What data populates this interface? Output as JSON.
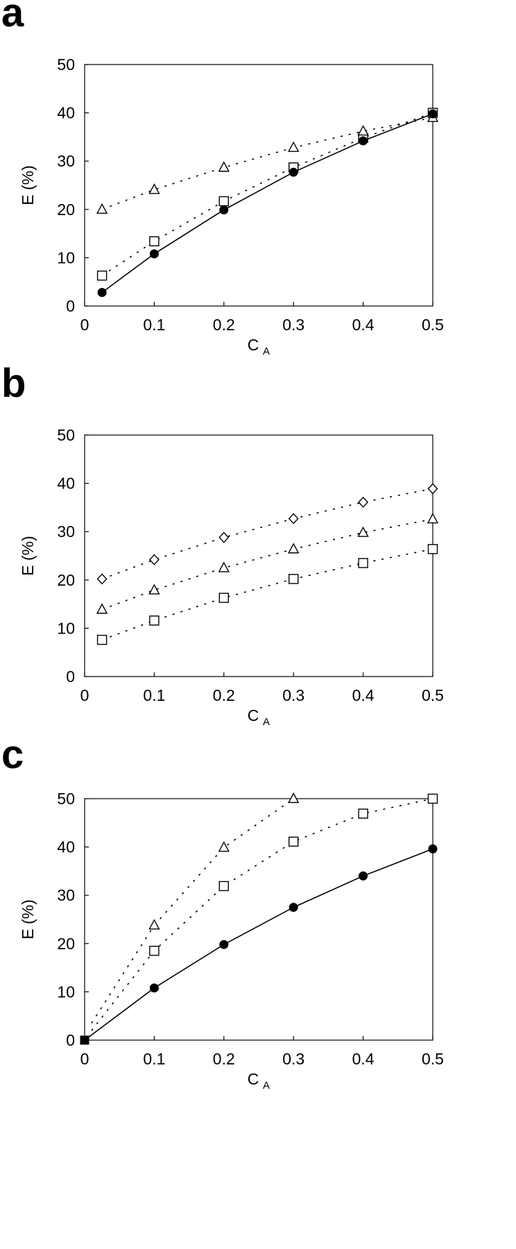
{
  "chart_data": [
    {
      "panel": "a",
      "type": "line",
      "xlabel": "C",
      "xlabel_sub": "A",
      "ylabel": "E (%)",
      "xlim": [
        0,
        0.5
      ],
      "ylim": [
        0,
        50
      ],
      "xticks": [
        "0",
        "0.1",
        "0.2",
        "0.3",
        "0.4",
        "0.5"
      ],
      "yticks": [
        "0",
        "10",
        "20",
        "30",
        "40",
        "50"
      ],
      "grid": false,
      "series": [
        {
          "marker": "filled-circle",
          "line": "solid",
          "color": "#000000",
          "x": [
            0.025,
            0.1,
            0.2,
            0.3,
            0.4,
            0.5
          ],
          "y": [
            2.8,
            10.8,
            19.9,
            27.7,
            34.2,
            39.8
          ]
        },
        {
          "marker": "open-square",
          "line": "dotted",
          "color": "#000000",
          "x": [
            0.025,
            0.1,
            0.2,
            0.3,
            0.4,
            0.5
          ],
          "y": [
            6.3,
            13.4,
            21.7,
            28.7,
            34.8,
            40.0
          ]
        },
        {
          "marker": "open-triangle",
          "line": "dotted",
          "color": "#000000",
          "x": [
            0.025,
            0.1,
            0.2,
            0.3,
            0.4,
            0.5
          ],
          "y": [
            20.0,
            24.1,
            28.7,
            32.8,
            36.2,
            39.0
          ]
        }
      ]
    },
    {
      "panel": "b",
      "type": "line",
      "xlabel": "C",
      "xlabel_sub": "A",
      "ylabel": "E (%)",
      "xlim": [
        0,
        0.5
      ],
      "ylim": [
        0,
        50
      ],
      "xticks": [
        "0",
        "0.1",
        "0.2",
        "0.3",
        "0.4",
        "0.5"
      ],
      "yticks": [
        "0",
        "10",
        "20",
        "30",
        "40",
        "50"
      ],
      "grid": false,
      "series": [
        {
          "marker": "open-diamond",
          "line": "dotted",
          "color": "#000000",
          "x": [
            0.025,
            0.1,
            0.2,
            0.3,
            0.4,
            0.5
          ],
          "y": [
            20.2,
            24.2,
            28.8,
            32.7,
            36.1,
            38.9
          ]
        },
        {
          "marker": "open-triangle",
          "line": "dotted",
          "color": "#000000",
          "x": [
            0.025,
            0.1,
            0.2,
            0.3,
            0.4,
            0.5
          ],
          "y": [
            13.9,
            17.9,
            22.5,
            26.4,
            29.8,
            32.6
          ]
        },
        {
          "marker": "open-square",
          "line": "dotted",
          "color": "#000000",
          "x": [
            0.025,
            0.1,
            0.2,
            0.3,
            0.4,
            0.5
          ],
          "y": [
            7.6,
            11.6,
            16.3,
            20.2,
            23.5,
            26.4
          ]
        }
      ]
    },
    {
      "panel": "c",
      "type": "line",
      "xlabel": "C",
      "xlabel_sub": "A",
      "ylabel": "E (%)",
      "xlim": [
        0,
        0.5
      ],
      "ylim": [
        0,
        50
      ],
      "xticks": [
        "0",
        "0.1",
        "0.2",
        "0.3",
        "0.4",
        "0.5"
      ],
      "yticks": [
        "0",
        "10",
        "20",
        "30",
        "40",
        "50"
      ],
      "grid": false,
      "series": [
        {
          "marker": "filled-circle",
          "line": "solid",
          "color": "#000000",
          "x": [
            0,
            0.1,
            0.2,
            0.3,
            0.4,
            0.5
          ],
          "y": [
            0,
            10.8,
            19.8,
            27.5,
            34.0,
            39.6
          ]
        },
        {
          "marker": "open-square",
          "line": "dotted",
          "color": "#000000",
          "x": [
            0.1,
            0.2,
            0.3,
            0.4,
            0.5
          ],
          "y": [
            18.5,
            31.9,
            41.1,
            46.9,
            50.0
          ],
          "curve_from": [
            0.01,
            2.0
          ]
        },
        {
          "marker": "open-triangle",
          "line": "dotted",
          "color": "#000000",
          "x": [
            0.1,
            0.2,
            0.3,
            0.4,
            0.5
          ],
          "y": [
            23.8,
            39.9,
            50.0,
            null,
            null
          ],
          "curve_from": [
            0.01,
            3.5
          ]
        }
      ],
      "origin_marker": {
        "marker": "filled-square",
        "x": 0,
        "y": 0
      }
    }
  ]
}
